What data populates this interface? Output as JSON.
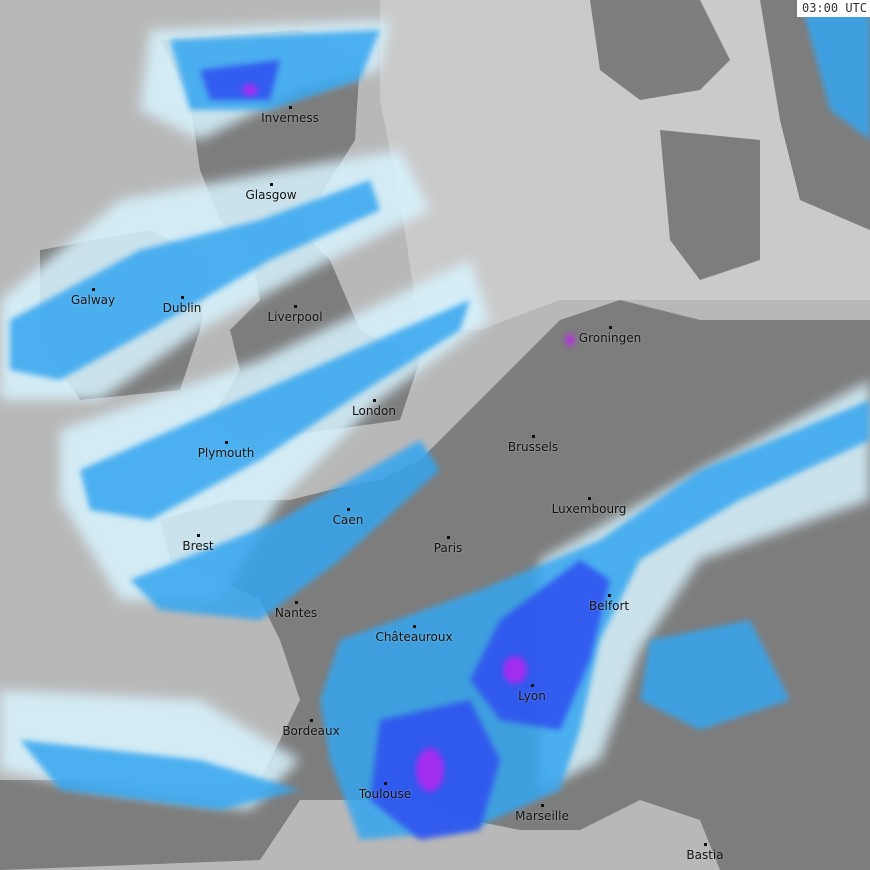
{
  "timestamp": "03:00 UTC",
  "colors": {
    "sea": "#b8b8b8",
    "land": "#7d7d7d",
    "land_light": "#cacaca",
    "rain_light": "#d8f4ff",
    "rain_moderate": "#35a6f0",
    "rain_heavy": "#2e4ff0",
    "rain_intense": "#c020f0"
  },
  "cities": [
    {
      "name": "Inverness"
    },
    {
      "name": "Glasgow"
    },
    {
      "name": "Galway"
    },
    {
      "name": "Dublin"
    },
    {
      "name": "Liverpool"
    },
    {
      "name": "London"
    },
    {
      "name": "Groningen"
    },
    {
      "name": "Brussels"
    },
    {
      "name": "Plymouth"
    },
    {
      "name": "Luxembourg"
    },
    {
      "name": "Caen"
    },
    {
      "name": "Brest"
    },
    {
      "name": "Paris"
    },
    {
      "name": "Belfort"
    },
    {
      "name": "Nantes"
    },
    {
      "name": "Châteauroux"
    },
    {
      "name": "Lyon"
    },
    {
      "name": "Bordeaux"
    },
    {
      "name": "Toulouse"
    },
    {
      "name": "Marseille"
    },
    {
      "name": "Bastia"
    }
  ]
}
